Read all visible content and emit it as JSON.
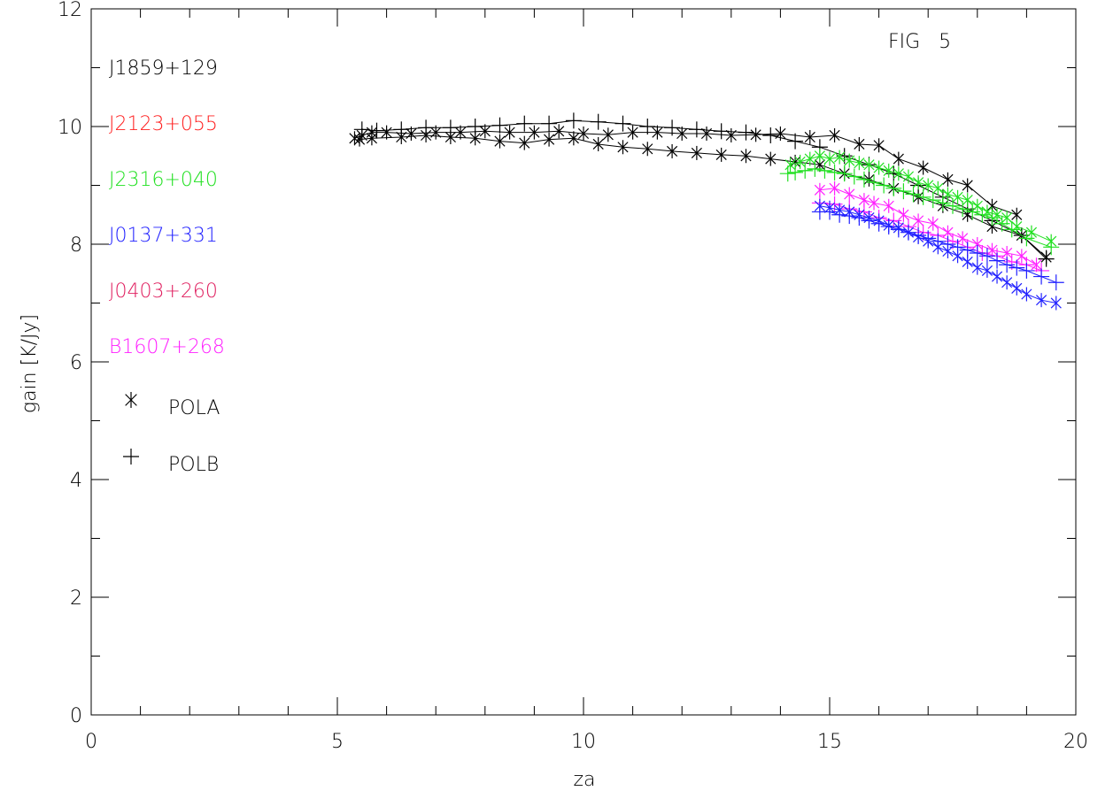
{
  "chart_data": {
    "type": "scatter",
    "title": "",
    "figure_label": "FIG   5",
    "xlabel": "za",
    "ylabel": "gain [K/Jy]",
    "xlim": [
      0,
      20
    ],
    "ylim": [
      0,
      12
    ],
    "x_major_ticks": [
      0,
      5,
      10,
      15,
      20
    ],
    "x_minor_step": 1,
    "y_major_ticks": [
      0,
      2,
      4,
      6,
      8,
      10,
      12
    ],
    "y_minor_step": 1,
    "x_tick_labels": [
      "0",
      "5",
      "10",
      "15",
      "20"
    ],
    "y_tick_labels": [
      "0",
      "2",
      "4",
      "6",
      "8",
      "10",
      "12"
    ],
    "grid": false,
    "legend_position": "top-left",
    "colors": {
      "J1859+129": "#000000",
      "J2123+055": "#ff2020",
      "J2316+040": "#20e020",
      "J0137+331": "#2020ff",
      "J0403+260": "#e02060",
      "B1607+268": "#ff20ff"
    },
    "source_legend": [
      {
        "name": "J1859+129",
        "color": "#000000"
      },
      {
        "name": "J2123+055",
        "color": "#ff2020"
      },
      {
        "name": "J2316+040",
        "color": "#20e020"
      },
      {
        "name": "J0137+331",
        "color": "#2020ff"
      },
      {
        "name": "J0403+260",
        "color": "#e02060"
      },
      {
        "name": "B1607+268",
        "color": "#ff20ff"
      }
    ],
    "marker_legend": [
      {
        "marker": "asterisk",
        "label": "POLA"
      },
      {
        "marker": "plus",
        "label": "POLB"
      }
    ],
    "series": [
      {
        "source": "J1859+129",
        "pol": "POLA",
        "marker": "asterisk",
        "color": "#000000",
        "x": [
          5.35,
          5.5,
          5.7,
          6.0,
          6.5,
          7.0,
          7.5,
          8.0,
          8.5,
          9.0,
          9.5,
          10.0,
          10.5,
          11.0,
          11.5,
          12.0,
          12.5,
          13.0,
          13.5,
          14.0,
          14.6,
          15.1,
          15.6,
          16.0,
          16.4,
          16.9,
          17.4,
          17.8,
          18.3,
          18.8
        ],
        "y": [
          9.8,
          9.85,
          9.9,
          9.9,
          9.88,
          9.9,
          9.9,
          9.92,
          9.9,
          9.9,
          9.92,
          9.88,
          9.86,
          9.9,
          9.9,
          9.88,
          9.88,
          9.85,
          9.86,
          9.88,
          9.82,
          9.85,
          9.7,
          9.68,
          9.45,
          9.3,
          9.1,
          9.0,
          8.65,
          8.5
        ]
      },
      {
        "source": "J1859+129",
        "pol": "POLA",
        "marker": "asterisk",
        "color": "#000000",
        "x": [
          5.45,
          5.7,
          6.3,
          6.8,
          7.3,
          7.8,
          8.3,
          8.8,
          9.3,
          9.8,
          10.3,
          10.8,
          11.3,
          11.8,
          12.3,
          12.8,
          13.3,
          13.8,
          14.3,
          14.8,
          15.3,
          15.8,
          16.3,
          16.8,
          17.3,
          17.8,
          18.3,
          18.9,
          19.4
        ],
        "y": [
          9.78,
          9.8,
          9.82,
          9.85,
          9.82,
          9.8,
          9.75,
          9.72,
          9.78,
          9.8,
          9.7,
          9.65,
          9.62,
          9.58,
          9.55,
          9.52,
          9.5,
          9.45,
          9.4,
          9.35,
          9.2,
          9.1,
          8.95,
          8.8,
          8.65,
          8.5,
          8.3,
          8.15,
          7.78
        ]
      },
      {
        "source": "J1859+129",
        "pol": "POLB",
        "marker": "plus",
        "color": "#000000",
        "x": [
          5.5,
          5.8,
          6.3,
          6.8,
          7.3,
          7.8,
          8.3,
          8.8,
          9.3,
          9.8,
          10.3,
          10.8,
          11.3,
          11.8,
          12.3,
          12.8,
          13.3,
          13.8,
          14.3,
          14.8,
          15.3,
          15.8,
          16.3,
          16.8,
          17.3,
          17.8,
          18.3,
          18.9,
          19.4
        ],
        "y": [
          9.95,
          9.93,
          9.95,
          9.98,
          9.98,
          10.0,
          10.02,
          10.05,
          10.05,
          10.1,
          10.08,
          10.05,
          10.0,
          9.98,
          9.95,
          9.92,
          9.9,
          9.85,
          9.75,
          9.65,
          9.5,
          9.35,
          9.2,
          9.0,
          8.8,
          8.6,
          8.4,
          8.15,
          7.75
        ]
      },
      {
        "source": "J2316+040",
        "pol": "POLA",
        "marker": "asterisk",
        "color": "#20e020",
        "x": [
          14.2,
          14.4,
          14.6,
          14.8,
          15.0,
          15.2,
          15.4,
          15.6,
          15.8,
          16.0,
          16.2,
          16.4,
          16.6,
          16.8,
          17.0,
          17.2,
          17.4,
          17.6,
          17.8,
          18.0,
          18.2,
          18.4,
          18.6,
          18.8,
          19.1,
          19.5
        ],
        "y": [
          9.35,
          9.4,
          9.45,
          9.5,
          9.45,
          9.48,
          9.42,
          9.38,
          9.35,
          9.3,
          9.25,
          9.2,
          9.15,
          9.05,
          9.0,
          8.95,
          8.85,
          8.8,
          8.75,
          8.65,
          8.55,
          8.5,
          8.45,
          8.3,
          8.2,
          8.05
        ]
      },
      {
        "source": "J2316+040",
        "pol": "POLB",
        "marker": "plus",
        "color": "#20e020",
        "x": [
          14.15,
          14.3,
          14.5,
          14.7,
          14.9,
          15.1,
          15.3,
          15.5,
          15.7,
          15.9,
          16.1,
          16.3,
          16.5,
          16.7,
          16.9,
          17.1,
          17.3,
          17.5,
          17.7,
          17.9,
          18.1,
          18.3,
          18.5,
          18.7,
          19.0,
          19.5
        ],
        "y": [
          9.2,
          9.22,
          9.25,
          9.28,
          9.25,
          9.22,
          9.2,
          9.15,
          9.1,
          9.05,
          9.0,
          8.95,
          8.9,
          8.85,
          8.8,
          8.75,
          8.7,
          8.65,
          8.6,
          8.55,
          8.5,
          8.45,
          8.35,
          8.25,
          8.1,
          7.95
        ]
      },
      {
        "source": "B1607+268",
        "pol": "POLA",
        "marker": "asterisk",
        "color": "#ff20ff",
        "x": [
          14.8,
          15.1,
          15.4,
          15.7,
          15.9,
          16.2,
          16.5,
          16.8,
          17.1,
          17.4,
          17.7,
          18.0,
          18.3,
          18.6,
          18.9,
          19.2
        ],
        "y": [
          8.92,
          8.95,
          8.85,
          8.75,
          8.7,
          8.65,
          8.5,
          8.4,
          8.35,
          8.2,
          8.1,
          8.0,
          7.9,
          7.85,
          7.8,
          7.65
        ]
      },
      {
        "source": "B1607+268",
        "pol": "POLB",
        "marker": "plus",
        "color": "#ff20ff",
        "x": [
          14.8,
          15.1,
          15.4,
          15.7,
          16.0,
          16.3,
          16.6,
          16.9,
          17.2,
          17.5,
          17.8,
          18.1,
          18.4,
          18.7,
          19.0,
          19.3
        ],
        "y": [
          8.7,
          8.68,
          8.6,
          8.55,
          8.45,
          8.4,
          8.3,
          8.2,
          8.15,
          8.05,
          7.95,
          7.85,
          7.8,
          7.7,
          7.65,
          7.55
        ]
      },
      {
        "source": "J0137+331",
        "pol": "POLA",
        "marker": "asterisk",
        "color": "#2020ff",
        "x": [
          14.8,
          15.0,
          15.2,
          15.4,
          15.6,
          15.8,
          16.0,
          16.2,
          16.4,
          16.6,
          16.8,
          17.0,
          17.2,
          17.4,
          17.6,
          17.8,
          18.0,
          18.2,
          18.4,
          18.6,
          18.8,
          19.0,
          19.3,
          19.6
        ],
        "y": [
          8.65,
          8.62,
          8.58,
          8.55,
          8.5,
          8.45,
          8.4,
          8.32,
          8.28,
          8.2,
          8.12,
          8.05,
          7.95,
          7.88,
          7.8,
          7.7,
          7.6,
          7.55,
          7.45,
          7.35,
          7.25,
          7.15,
          7.05,
          7.0
        ]
      },
      {
        "source": "J0137+331",
        "pol": "POLB",
        "marker": "plus",
        "color": "#2020ff",
        "x": [
          14.8,
          15.0,
          15.2,
          15.4,
          15.6,
          15.8,
          16.0,
          16.2,
          16.4,
          16.6,
          16.8,
          17.0,
          17.2,
          17.4,
          17.6,
          17.8,
          18.0,
          18.2,
          18.4,
          18.6,
          18.8,
          19.0,
          19.3,
          19.6
        ],
        "y": [
          8.55,
          8.55,
          8.5,
          8.48,
          8.45,
          8.4,
          8.35,
          8.3,
          8.25,
          8.2,
          8.15,
          8.1,
          8.05,
          8.0,
          7.95,
          7.9,
          7.85,
          7.8,
          7.72,
          7.65,
          7.6,
          7.55,
          7.45,
          7.35
        ]
      }
    ]
  }
}
